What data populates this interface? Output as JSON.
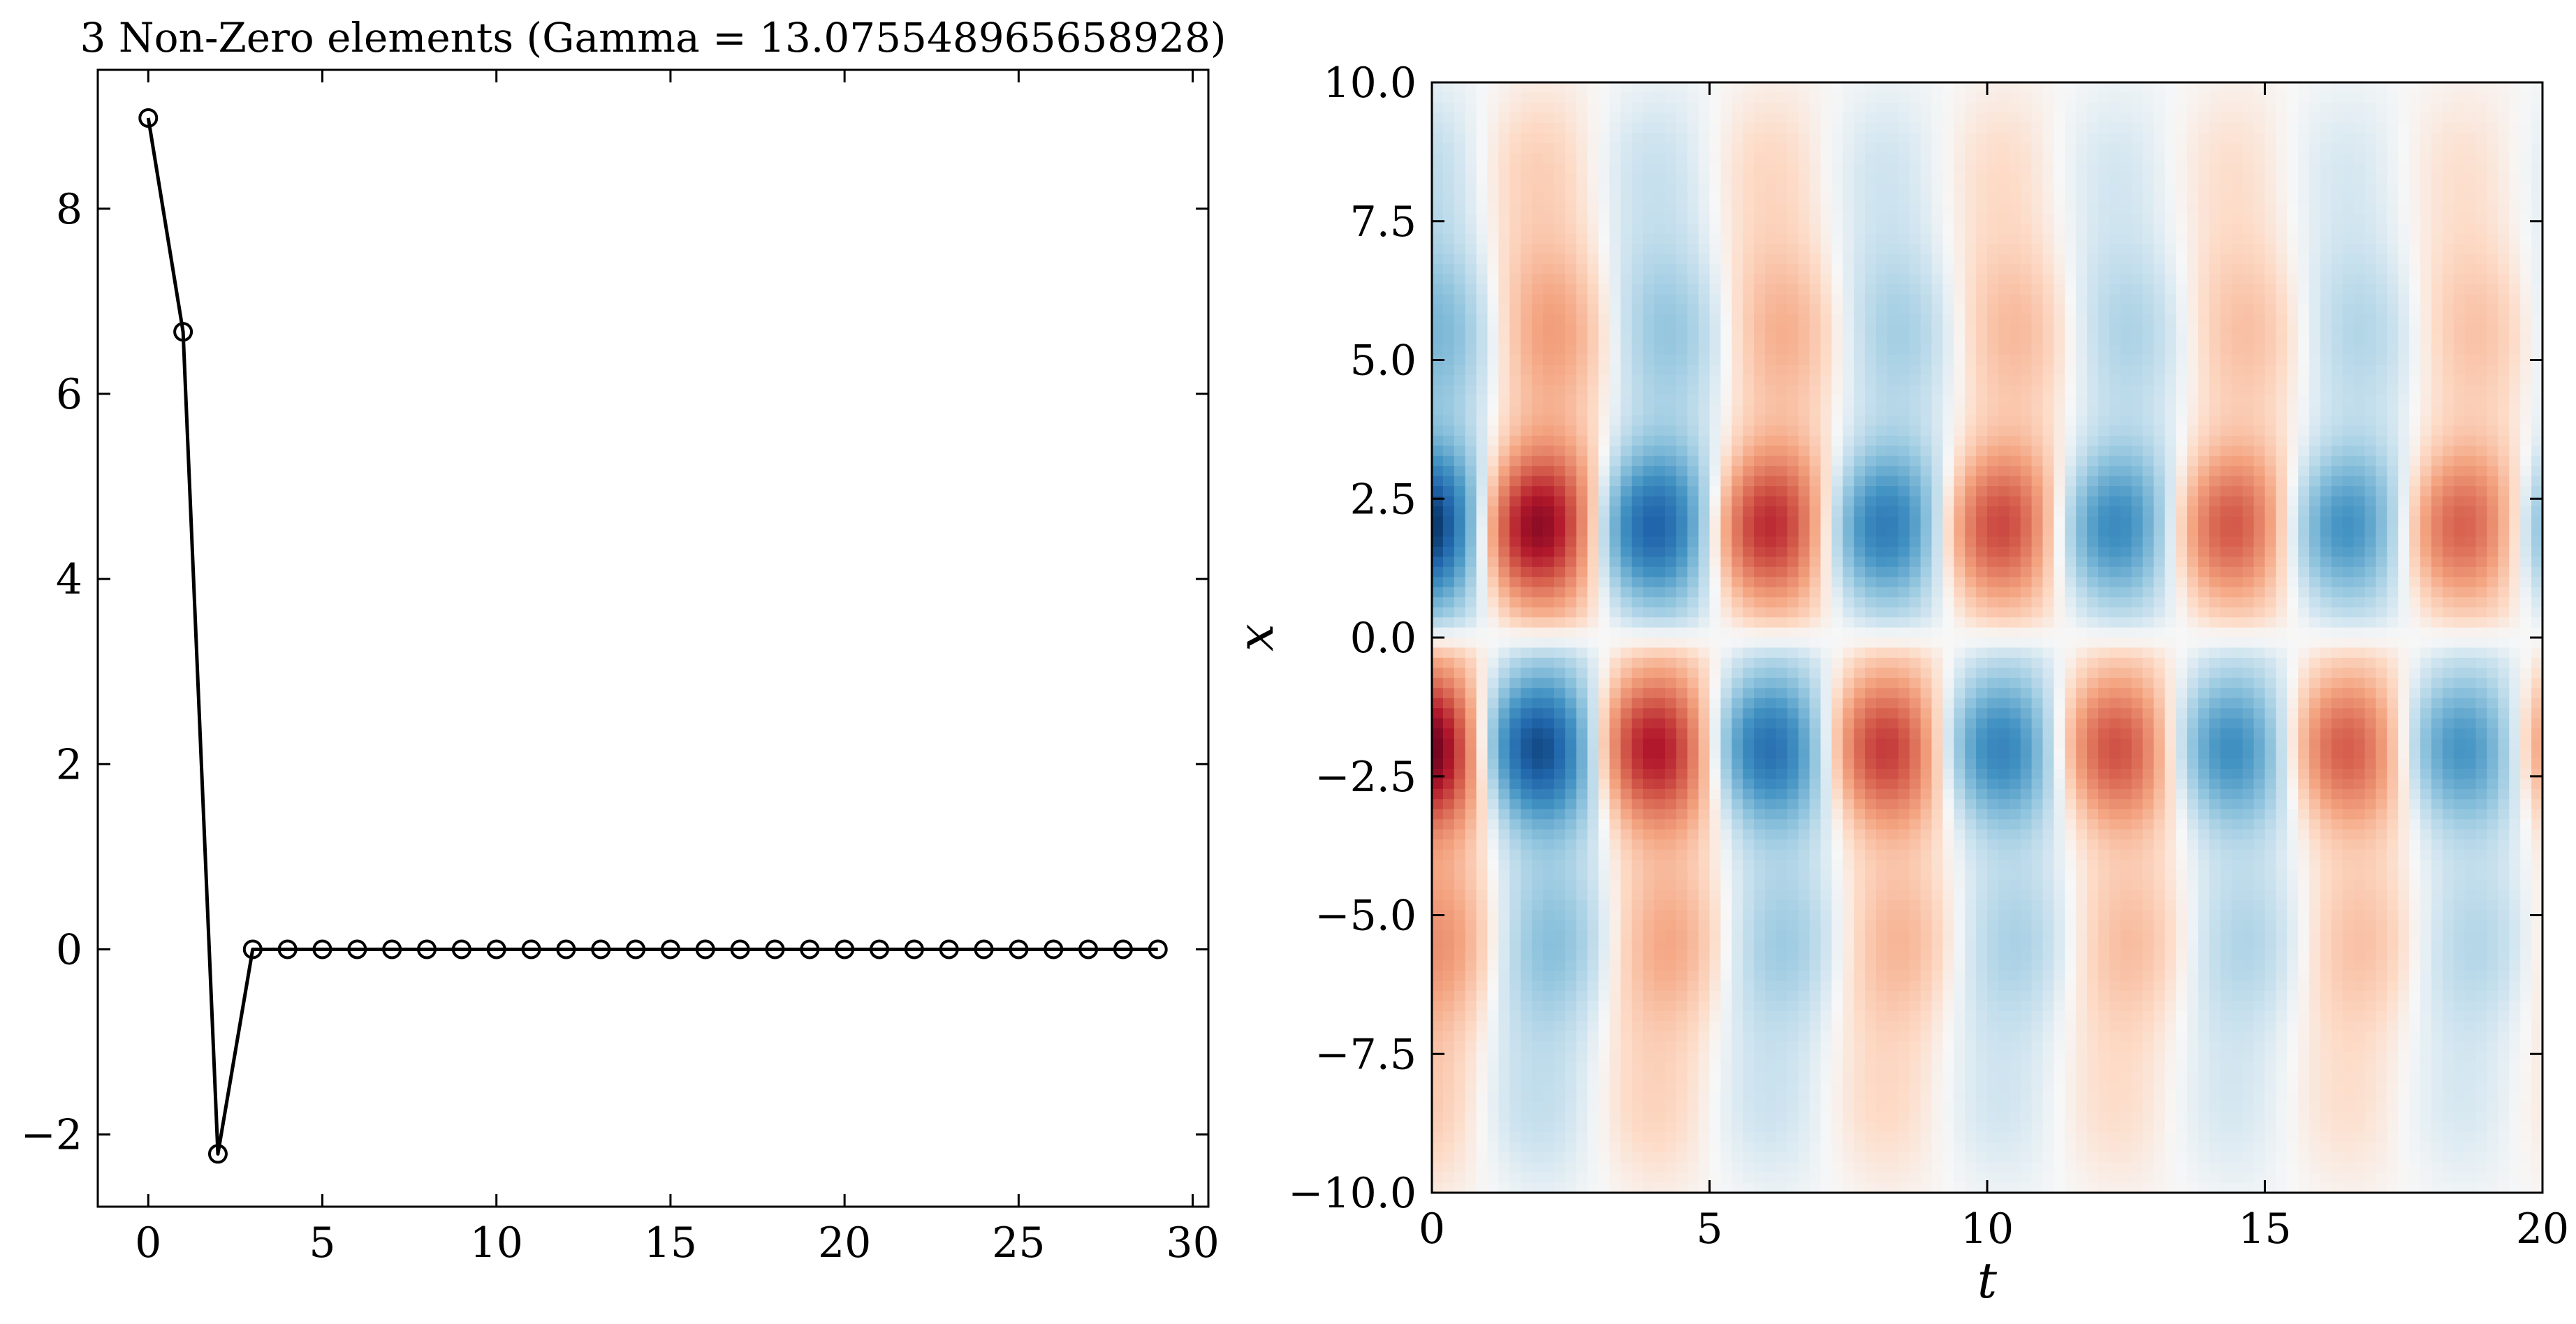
{
  "chart_data": [
    {
      "type": "line",
      "title": "3 Non-Zero elements (Gamma = 13.075548965658928)",
      "xlabel": "",
      "ylabel": "",
      "xlim": [
        -1.45,
        30.45
      ],
      "ylim": [
        -2.78,
        9.5
      ],
      "xticks": [
        0,
        5,
        10,
        15,
        20,
        25,
        30
      ],
      "xtick_labels": [
        "0",
        "5",
        "10",
        "15",
        "20",
        "25",
        "30"
      ],
      "yticks": [
        -2,
        0,
        2,
        4,
        6,
        8
      ],
      "ytick_labels": [
        "−2",
        "0",
        "2",
        "4",
        "6",
        "8"
      ],
      "marker": "open-circle",
      "line_color": "#000000",
      "grid": false,
      "series": [
        {
          "x": [
            0,
            1,
            2,
            3,
            4,
            5,
            6,
            7,
            8,
            9,
            10,
            11,
            12,
            13,
            14,
            15,
            16,
            17,
            18,
            19,
            20,
            21,
            22,
            23,
            24,
            25,
            26,
            27,
            28,
            29
          ],
          "values": [
            8.98,
            6.67,
            -2.21,
            0,
            0,
            0,
            0,
            0,
            0,
            0,
            0,
            0,
            0,
            0,
            0,
            0,
            0,
            0,
            0,
            0,
            0,
            0,
            0,
            0,
            0,
            0,
            0,
            0,
            0,
            0
          ]
        }
      ]
    },
    {
      "type": "heatmap",
      "title": "",
      "xlabel": "t",
      "ylabel": "x",
      "xlim": [
        0,
        20
      ],
      "ylim": [
        -10,
        10
      ],
      "xticks": [
        0,
        5,
        10,
        15,
        20
      ],
      "xtick_labels": [
        "0",
        "5",
        "10",
        "15",
        "20"
      ],
      "yticks": [
        10,
        7.5,
        5,
        2.5,
        0,
        -2.5,
        -5,
        -7.5,
        -10
      ],
      "ytick_labels": [
        "10.0",
        "7.5",
        "5.0",
        "2.5",
        "0.0",
        "−2.5",
        "−5.0",
        "−7.5",
        "−10.0"
      ],
      "colormap": "RdBu_r",
      "colors": {
        "positive": "#b2182b",
        "mid": "#f7f7f7",
        "negative": "#2166ac"
      },
      "description_of_field": "antisymmetric in x; oscillating in t with period ~4.2; bands centred near x = +2.0 and x = -2.0; amplitude decays over t",
      "grid": false
    }
  ]
}
